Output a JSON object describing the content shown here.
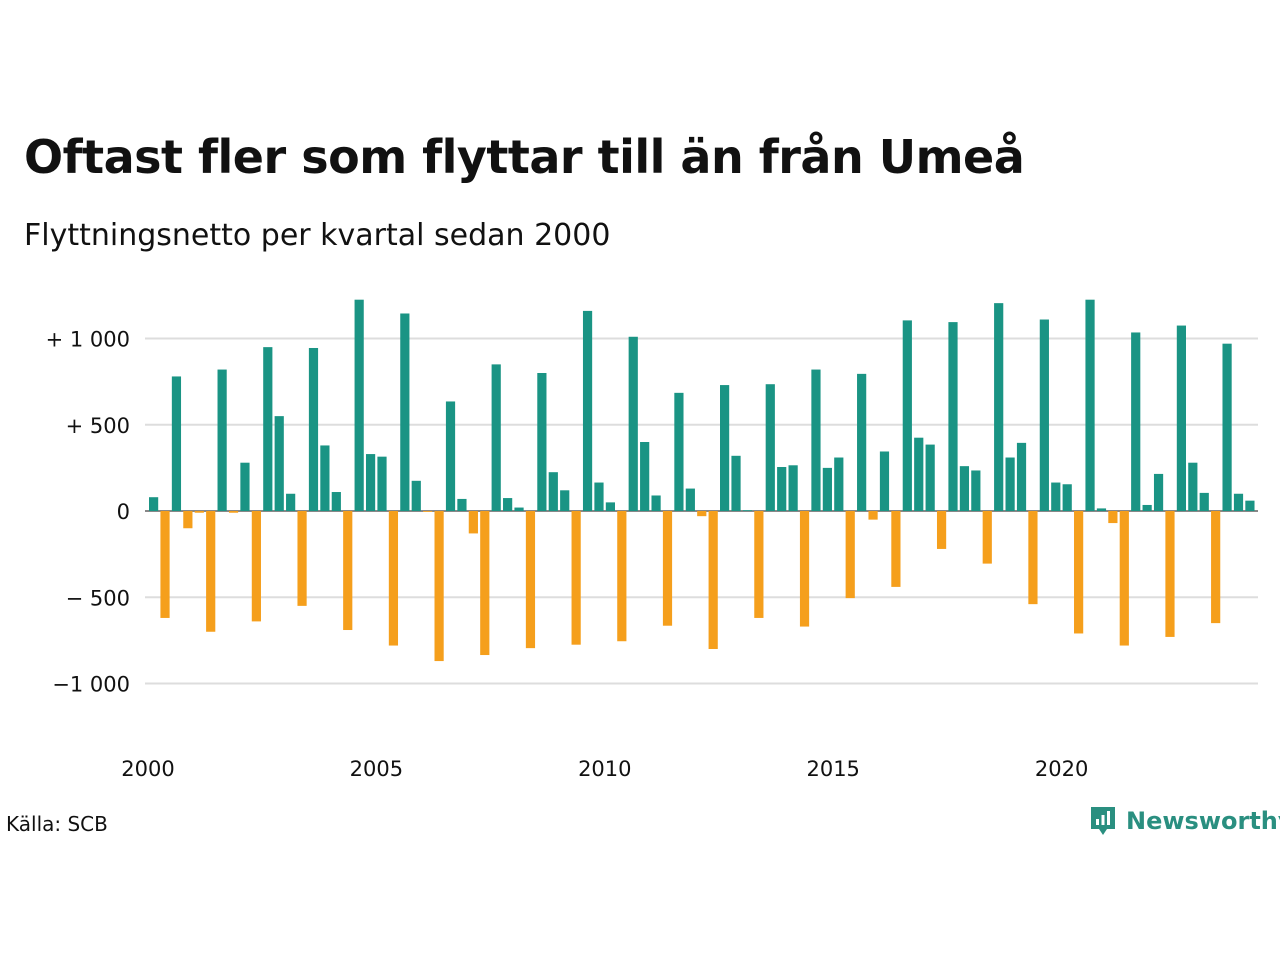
{
  "header": {
    "title": "Oftast fler som flyttar till än från Umeå",
    "subtitle": "Flyttningsnetto per kvartal sedan 2000"
  },
  "footer": {
    "source": "Källa: SCB",
    "brand": "Newsworthy"
  },
  "chart_data": {
    "type": "bar",
    "y_ticks": [
      {
        "value": 1000,
        "label": "+ 1 000"
      },
      {
        "value": 500,
        "label": "+   500"
      },
      {
        "value": 0,
        "label": "0"
      },
      {
        "value": -500,
        "label": "−  500"
      },
      {
        "value": -1000,
        "label": "−1 000"
      }
    ],
    "x_ticks": [
      {
        "year": 2000,
        "label": "2000"
      },
      {
        "year": 2005,
        "label": "2005"
      },
      {
        "year": 2010,
        "label": "2010"
      },
      {
        "year": 2015,
        "label": "2015"
      },
      {
        "year": 2020,
        "label": "2020"
      }
    ],
    "start": "2000 Q1",
    "grid": true,
    "colors": {
      "positive": "#1a9484",
      "negative": "#f59f1c",
      "grid": "#dddddd"
    },
    "values": [
      80,
      -620,
      780,
      -100,
      -10,
      -700,
      820,
      -10,
      280,
      -640,
      950,
      550,
      100,
      -550,
      945,
      380,
      110,
      -690,
      1225,
      330,
      315,
      -780,
      1145,
      175,
      -5,
      -870,
      635,
      70,
      -130,
      -835,
      850,
      75,
      20,
      -795,
      800,
      225,
      120,
      -775,
      1160,
      165,
      50,
      -755,
      1010,
      400,
      90,
      -665,
      685,
      130,
      -30,
      -800,
      730,
      320,
      5,
      -620,
      735,
      255,
      265,
      -670,
      820,
      250,
      310,
      -505,
      795,
      -50,
      345,
      -440,
      1105,
      425,
      385,
      -220,
      1095,
      260,
      235,
      -305,
      1205,
      310,
      395,
      -540,
      1110,
      165,
      155,
      -710,
      1225,
      15,
      -70,
      -780,
      1035,
      35,
      215,
      -730,
      1075,
      280,
      105,
      -650,
      970,
      100,
      60
    ]
  }
}
